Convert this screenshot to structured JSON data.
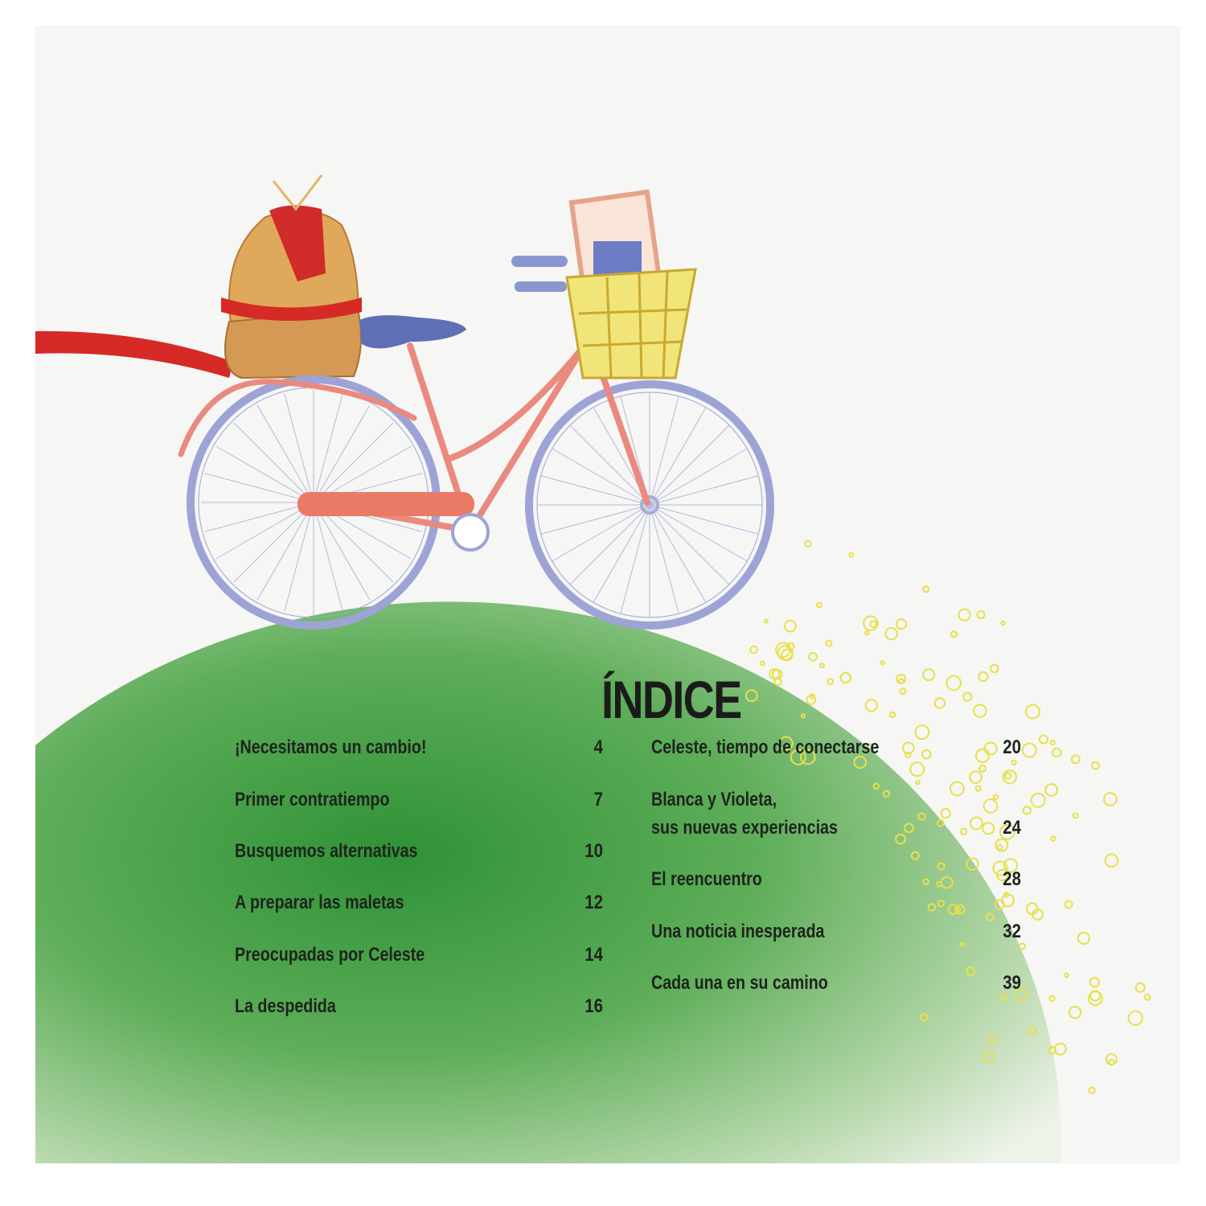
{
  "title": "ÍNDICE",
  "colors": {
    "hill": "#3a9a3e",
    "dots": "#e8e04a",
    "ribbon": "#d52a25",
    "frame": "#e98a7f",
    "wheel": "#9ea3d6"
  },
  "toc_left": [
    {
      "title": "¡Necesitamos un cambio!",
      "page": "4"
    },
    {
      "title": "Primer contratiempo",
      "page": "7"
    },
    {
      "title": "Busquemos alternativas",
      "page": "10"
    },
    {
      "title": "A preparar las maletas",
      "page": "12"
    },
    {
      "title": "Preocupadas por Celeste",
      "page": "14"
    },
    {
      "title": "La despedida",
      "page": "16"
    }
  ],
  "toc_right": [
    {
      "title": "Celeste, tiempo de conectarse",
      "page": "20"
    },
    {
      "title": "Blanca y Violeta,",
      "title2": "sus nuevas experiencias",
      "page": "24"
    },
    {
      "title": "El reencuentro",
      "page": "28"
    },
    {
      "title": "Una noticia inesperada",
      "page": "32"
    },
    {
      "title": "Cada una en su camino",
      "page": "39"
    }
  ]
}
